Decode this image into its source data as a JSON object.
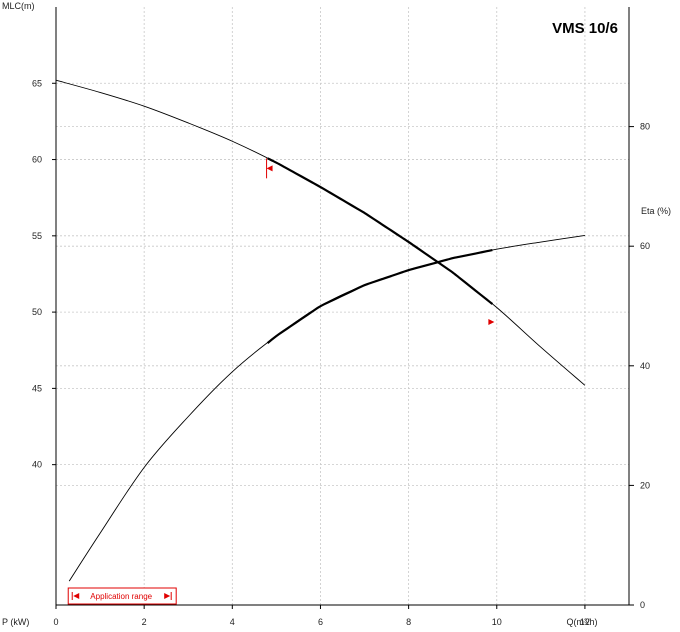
{
  "chart_data": {
    "type": "line",
    "title": "VMS 10/6",
    "x_axis": {
      "label": "Q(m³/h)",
      "range": [
        0,
        13
      ],
      "ticks": [
        0,
        2,
        4,
        6,
        8,
        10,
        12
      ]
    },
    "y_left": {
      "label": "MLC(m)",
      "range": [
        30.8,
        70
      ],
      "ticks": [
        40,
        45,
        50,
        55,
        60,
        65
      ]
    },
    "y_right": {
      "label": "Eta (%)",
      "range": [
        0,
        100
      ],
      "ticks": [
        0,
        20,
        40,
        60,
        80
      ]
    },
    "bottom_left_label": "P (kW)",
    "grid": true,
    "series": [
      {
        "axis": "left",
        "x": [
          0,
          1,
          2,
          3,
          4,
          5,
          6,
          7,
          8,
          9,
          10,
          11,
          12
        ],
        "y": [
          65.2,
          64.4,
          63.5,
          62.4,
          61.2,
          59.8,
          58.2,
          56.5,
          54.6,
          52.6,
          50.3,
          47.7,
          45.2
        ]
      },
      {
        "axis": "right",
        "x": [
          0.3,
          1,
          2,
          3,
          4,
          5,
          6,
          7,
          8,
          9,
          10,
          11,
          12
        ],
        "y": [
          4,
          12,
          23,
          31.5,
          39,
          45,
          50,
          53.5,
          56,
          58,
          59.5,
          60.7,
          61.8
        ]
      }
    ],
    "operating_range": [
      4.8,
      9.9
    ],
    "application_range": {
      "label": "Application range",
      "x": [
        0.3,
        2.5
      ]
    }
  }
}
